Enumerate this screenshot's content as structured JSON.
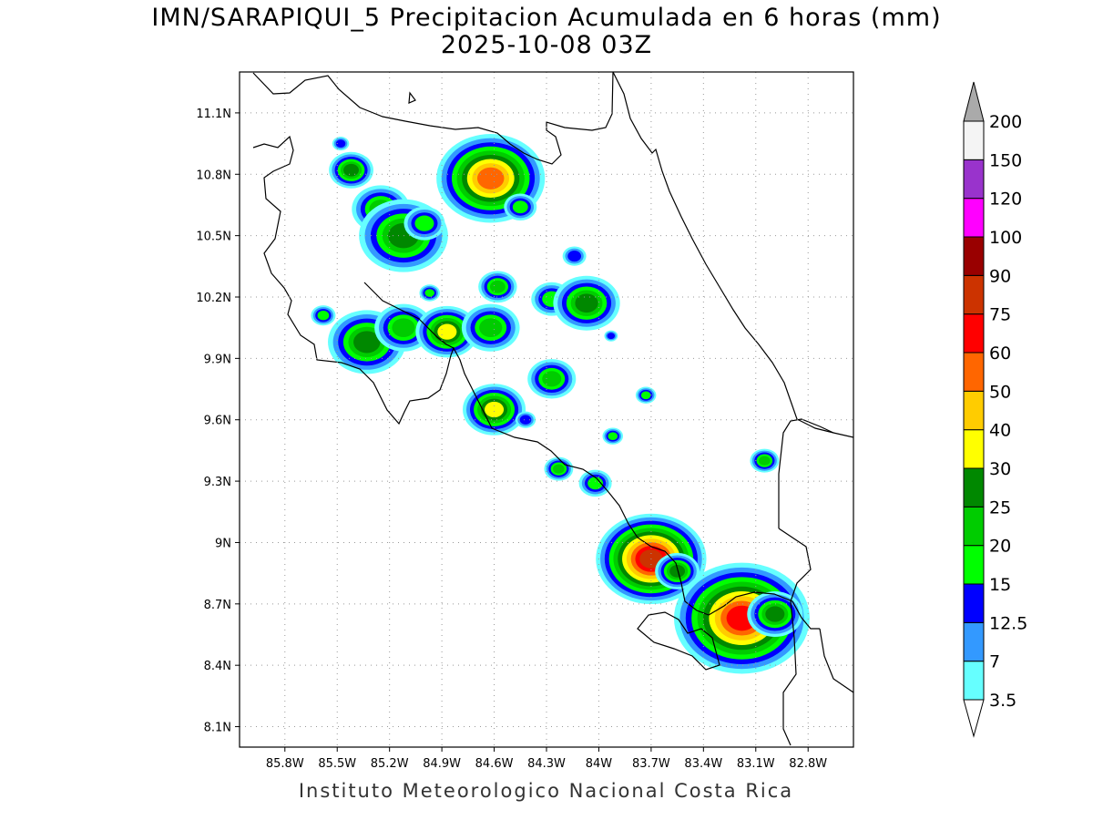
{
  "title": {
    "line1": "IMN/SARAPIQUI_5 Precipitacion Acumulada en 6 horas (mm)",
    "line2": "2025-10-08 03Z"
  },
  "footer": "Instituto Meteorologico Nacional Costa Rica",
  "map_data": {
    "lon_range": [
      -86.06,
      -82.54
    ],
    "lat_range": [
      8.0,
      11.3
    ],
    "x_ticks": [
      "85.8W",
      "85.5W",
      "85.2W",
      "84.9W",
      "84.6W",
      "84.3W",
      "84W",
      "83.7W",
      "83.4W",
      "83.1W",
      "82.8W"
    ],
    "x_tick_values": [
      -85.8,
      -85.5,
      -85.2,
      -84.9,
      -84.6,
      -84.3,
      -84.0,
      -83.7,
      -83.4,
      -83.1,
      -82.8
    ],
    "y_ticks": [
      "8.1N",
      "8.4N",
      "8.7N",
      "9N",
      "9.3N",
      "9.6N",
      "9.9N",
      "10.2N",
      "10.5N",
      "10.8N",
      "11.1N"
    ],
    "y_tick_values": [
      8.1,
      8.4,
      8.7,
      9.0,
      9.3,
      9.6,
      9.9,
      10.2,
      10.5,
      10.8,
      11.1
    ],
    "grid": true,
    "colorbar": {
      "labels": [
        "3.5",
        "7",
        "12.5",
        "15",
        "20",
        "25",
        "30",
        "40",
        "50",
        "60",
        "75",
        "90",
        "100",
        "120",
        "150",
        "200"
      ],
      "colors": [
        "#ffffff",
        "#66ffff",
        "#3399ff",
        "#0000ff",
        "#00ff00",
        "#00cc00",
        "#008800",
        "#ffff00",
        "#ffcc00",
        "#ff6600",
        "#ff0000",
        "#cc3300",
        "#990000",
        "#ff00ff",
        "#9933cc",
        "#f4f4f4",
        "#aaaaaa"
      ]
    },
    "rain_cells": [
      {
        "lon": -85.42,
        "lat": 10.82,
        "level": 6,
        "r": 0.08
      },
      {
        "lon": -85.48,
        "lat": 10.95,
        "level": 3,
        "r": 0.05
      },
      {
        "lon": -85.25,
        "lat": 10.63,
        "level": 5,
        "r": 0.12
      },
      {
        "lon": -85.12,
        "lat": 10.5,
        "level": 6,
        "r": 0.16
      },
      {
        "lon": -85.0,
        "lat": 10.56,
        "level": 4,
        "r": 0.1
      },
      {
        "lon": -84.62,
        "lat": 10.78,
        "level": 9,
        "r": 0.14
      },
      {
        "lon": -84.45,
        "lat": 10.64,
        "level": 4,
        "r": 0.08
      },
      {
        "lon": -84.97,
        "lat": 10.22,
        "level": 4,
        "r": 0.05
      },
      {
        "lon": -85.58,
        "lat": 10.11,
        "level": 4,
        "r": 0.06
      },
      {
        "lon": -85.33,
        "lat": 9.98,
        "level": 6,
        "r": 0.14
      },
      {
        "lon": -85.12,
        "lat": 10.05,
        "level": 5,
        "r": 0.12
      },
      {
        "lon": -84.87,
        "lat": 10.03,
        "level": 7,
        "r": 0.1
      },
      {
        "lon": -84.62,
        "lat": 10.05,
        "level": 5,
        "r": 0.12
      },
      {
        "lon": -84.58,
        "lat": 10.25,
        "level": 5,
        "r": 0.08
      },
      {
        "lon": -84.27,
        "lat": 10.19,
        "level": 4,
        "r": 0.1
      },
      {
        "lon": -84.07,
        "lat": 10.17,
        "level": 6,
        "r": 0.12
      },
      {
        "lon": -84.14,
        "lat": 10.4,
        "level": 3,
        "r": 0.07
      },
      {
        "lon": -84.27,
        "lat": 9.8,
        "level": 5,
        "r": 0.1
      },
      {
        "lon": -84.6,
        "lat": 9.65,
        "level": 7,
        "r": 0.1
      },
      {
        "lon": -84.42,
        "lat": 9.6,
        "level": 3,
        "r": 0.06
      },
      {
        "lon": -84.23,
        "lat": 9.36,
        "level": 5,
        "r": 0.06
      },
      {
        "lon": -84.02,
        "lat": 9.29,
        "level": 4,
        "r": 0.08
      },
      {
        "lon": -83.92,
        "lat": 9.52,
        "level": 4,
        "r": 0.05
      },
      {
        "lon": -83.73,
        "lat": 9.72,
        "level": 4,
        "r": 0.05
      },
      {
        "lon": -83.7,
        "lat": 8.92,
        "level": 11,
        "r": 0.12
      },
      {
        "lon": -83.55,
        "lat": 8.86,
        "level": 6,
        "r": 0.08
      },
      {
        "lon": -83.18,
        "lat": 8.63,
        "level": 10,
        "r": 0.16
      },
      {
        "lon": -82.99,
        "lat": 8.65,
        "level": 6,
        "r": 0.1
      },
      {
        "lon": -83.05,
        "lat": 9.4,
        "level": 5,
        "r": 0.06
      },
      {
        "lon": -83.93,
        "lat": 10.01,
        "level": 3,
        "r": 0.04
      }
    ]
  }
}
